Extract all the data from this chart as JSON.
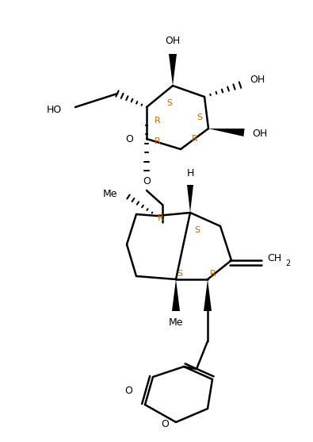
{
  "bg_color": "#ffffff",
  "line_color": "#000000",
  "figsize": [
    3.95,
    5.57
  ],
  "dpi": 100,
  "xlim": [
    0,
    395
  ],
  "ylim": [
    0,
    557
  ],
  "stereo_color": "#cc6600"
}
